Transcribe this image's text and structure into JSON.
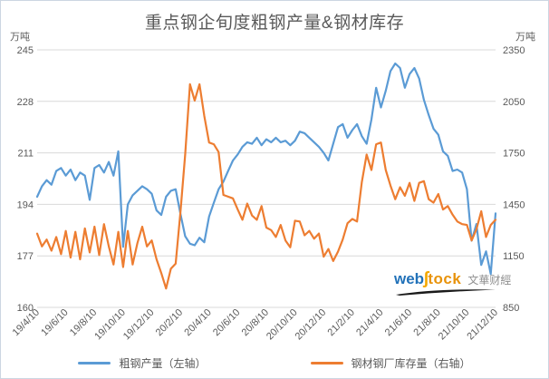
{
  "title": "重点钢企旬度粗钢产量&钢材库存",
  "watermark": {
    "web": "web",
    "swoosh": "ʃ",
    "tock": "tock",
    "cn": "文華财經"
  },
  "colors": {
    "production_line": "#5b9bd5",
    "inventory_line": "#ed7d31",
    "gridline": "#d9d9d9",
    "text": "#595959"
  },
  "chart_data": {
    "type": "line",
    "title": "重点钢企旬度粗钢产量&钢材库存",
    "grid": true,
    "legend_position": "bottom",
    "left_axis": {
      "unit": "万吨",
      "min": 160,
      "max": 245,
      "ticks": [
        245,
        228,
        211,
        194,
        177,
        160
      ]
    },
    "right_axis": {
      "unit": "万吨",
      "min": 850,
      "max": 2350,
      "ticks": [
        2350,
        2050,
        1750,
        1450,
        1150,
        850
      ]
    },
    "x_tick_labels": [
      "19/4/10",
      "19/6/10",
      "19/8/10",
      "19/10/10",
      "19/12/10",
      "20/2/10",
      "20/4/10",
      "20/6/10",
      "20/8/10",
      "20/10/10",
      "20/12/10",
      "21/2/10",
      "21/4/10",
      "21/6/10",
      "21/8/10",
      "21/10/10",
      "21/12/10"
    ],
    "x": [
      "19/4/10",
      "19/4/20",
      "19/4/30",
      "19/5/10",
      "19/5/20",
      "19/5/31",
      "19/6/10",
      "19/6/20",
      "19/6/30",
      "19/7/10",
      "19/7/20",
      "19/7/31",
      "19/8/10",
      "19/8/20",
      "19/8/31",
      "19/9/10",
      "19/9/20",
      "19/9/30",
      "19/10/10",
      "19/10/20",
      "19/10/31",
      "19/11/10",
      "19/11/20",
      "19/11/30",
      "19/12/10",
      "19/12/20",
      "19/12/31",
      "20/1/10",
      "20/1/20",
      "20/1/31",
      "20/2/10",
      "20/2/20",
      "20/2/29",
      "20/3/10",
      "20/3/20",
      "20/3/31",
      "20/4/10",
      "20/4/20",
      "20/4/30",
      "20/5/10",
      "20/5/20",
      "20/5/31",
      "20/6/10",
      "20/6/20",
      "20/6/30",
      "20/7/10",
      "20/7/20",
      "20/7/31",
      "20/8/10",
      "20/8/20",
      "20/8/31",
      "20/9/10",
      "20/9/20",
      "20/9/30",
      "20/10/10",
      "20/10/20",
      "20/10/31",
      "20/11/10",
      "20/11/20",
      "20/11/30",
      "20/12/10",
      "20/12/20",
      "20/12/31",
      "21/1/10",
      "21/1/20",
      "21/1/31",
      "21/2/10",
      "21/2/20",
      "21/2/28",
      "21/3/10",
      "21/3/20",
      "21/3/31",
      "21/4/10",
      "21/4/20",
      "21/4/30",
      "21/5/10",
      "21/5/20",
      "21/5/31",
      "21/6/10",
      "21/6/20",
      "21/6/30",
      "21/7/10",
      "21/7/20",
      "21/7/31",
      "21/8/10",
      "21/8/20",
      "21/8/31",
      "21/9/10",
      "21/9/20",
      "21/9/30",
      "21/10/10",
      "21/10/20",
      "21/10/31",
      "21/11/10",
      "21/11/20",
      "21/11/30",
      "21/12/10"
    ],
    "series": [
      {
        "name": "粗钢产量（左轴）",
        "axis": "left",
        "color": "#5b9bd5",
        "values": [
          196.5,
          200,
          202,
          200.5,
          205,
          206,
          203.5,
          205.5,
          202,
          204.5,
          203.5,
          195.5,
          206,
          207,
          204.5,
          208,
          203.5,
          211.5,
          180,
          194,
          197,
          198.5,
          200,
          199,
          197.5,
          192,
          190.5,
          196.5,
          198.5,
          199,
          191,
          183.5,
          181,
          180.5,
          183,
          181.5,
          190,
          194.5,
          199,
          201.5,
          205,
          208.5,
          210.5,
          213,
          214.5,
          214,
          216,
          213.5,
          215.5,
          214.5,
          216,
          214.5,
          215,
          213.5,
          215,
          218,
          217.5,
          216,
          214.5,
          213,
          211,
          208.5,
          214,
          219.5,
          220.5,
          216,
          218.5,
          220.5,
          216.5,
          214,
          222,
          232.5,
          226,
          231.5,
          238,
          240.5,
          239,
          232.5,
          237,
          239,
          235.5,
          228.5,
          223.5,
          219,
          217,
          211.5,
          210,
          205,
          205.5,
          204.5,
          199,
          182,
          187.5,
          174,
          178.5,
          171,
          191
        ]
      },
      {
        "name": "钢材钢厂库存量（右轴）",
        "axis": "right",
        "color": "#ed7d31",
        "values": [
          1280,
          1205,
          1245,
          1180,
          1260,
          1160,
          1295,
          1140,
          1290,
          1130,
          1310,
          1170,
          1320,
          1155,
          1335,
          1205,
          1100,
          1290,
          1085,
          1295,
          1100,
          1225,
          1320,
          1205,
          1240,
          1130,
          1050,
          960,
          1075,
          1105,
          1400,
          1740,
          2150,
          2055,
          2150,
          1965,
          1810,
          1800,
          1755,
          1505,
          1495,
          1485,
          1420,
          1360,
          1455,
          1385,
          1360,
          1440,
          1315,
          1300,
          1260,
          1330,
          1240,
          1200,
          1355,
          1350,
          1270,
          1295,
          1250,
          1280,
          1145,
          1190,
          1120,
          1175,
          1245,
          1340,
          1365,
          1350,
          1580,
          1740,
          1650,
          1800,
          1810,
          1650,
          1560,
          1480,
          1550,
          1500,
          1575,
          1470,
          1575,
          1585,
          1480,
          1460,
          1510,
          1420,
          1440,
          1390,
          1350,
          1335,
          1330,
          1240,
          1305,
          1410,
          1260,
          1330,
          1360
        ]
      }
    ]
  }
}
